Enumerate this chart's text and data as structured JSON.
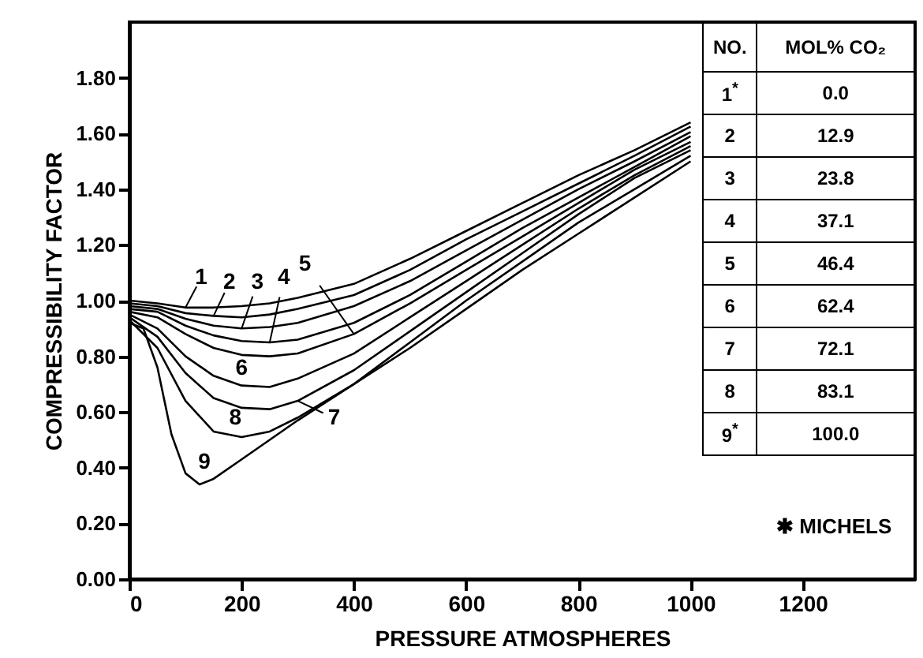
{
  "chart_data": {
    "type": "line",
    "xlabel": "PRESSURE  ATMOSPHERES",
    "ylabel": "COMPRESSIBILITY FACTOR",
    "xlim": [
      0,
      1400
    ],
    "ylim": [
      0,
      2.0
    ],
    "xticks": [
      0,
      200,
      400,
      600,
      800,
      1000,
      1200
    ],
    "yticks": [
      {
        "value": 0,
        "label": "0.00"
      },
      {
        "value": 0.2,
        "label": "0.20"
      },
      {
        "value": 0.4,
        "label": "0.40"
      },
      {
        "value": 0.6,
        "label": "0.60"
      },
      {
        "value": 0.8,
        "label": "0.80"
      },
      {
        "value": 1.0,
        "label": "1.00"
      },
      {
        "value": 1.2,
        "label": "1.20"
      },
      {
        "value": 1.4,
        "label": "1.40"
      },
      {
        "value": 1.6,
        "label": "1.60"
      },
      {
        "value": 1.8,
        "label": "1.80"
      }
    ],
    "x": [
      0,
      50,
      100,
      150,
      200,
      250,
      300,
      400,
      500,
      600,
      700,
      800,
      900,
      1000
    ],
    "series": [
      {
        "color": "#000000",
        "values": [
          1.0,
          0.99,
          0.975,
          0.975,
          0.98,
          0.99,
          1.01,
          1.06,
          1.15,
          1.25,
          1.35,
          1.45,
          1.54,
          1.64
        ]
      },
      {
        "color": "#000000",
        "values": [
          0.99,
          0.98,
          0.955,
          0.945,
          0.94,
          0.95,
          0.97,
          1.02,
          1.11,
          1.22,
          1.32,
          1.42,
          1.52,
          1.625
        ]
      },
      {
        "color": "#000000",
        "values": [
          0.98,
          0.97,
          0.935,
          0.91,
          0.9,
          0.905,
          0.92,
          0.98,
          1.07,
          1.18,
          1.29,
          1.4,
          1.5,
          1.605
        ]
      },
      {
        "color": "#000000",
        "values": [
          0.97,
          0.96,
          0.91,
          0.875,
          0.855,
          0.85,
          0.86,
          0.92,
          1.02,
          1.14,
          1.26,
          1.37,
          1.48,
          1.59
        ]
      },
      {
        "color": "#000000",
        "values": [
          0.96,
          0.94,
          0.88,
          0.83,
          0.805,
          0.8,
          0.81,
          0.88,
          0.99,
          1.11,
          1.23,
          1.35,
          1.47,
          1.57
        ]
      },
      {
        "color": "#000000",
        "values": [
          0.95,
          0.9,
          0.8,
          0.73,
          0.695,
          0.69,
          0.72,
          0.81,
          0.94,
          1.07,
          1.2,
          1.33,
          1.45,
          1.555
        ]
      },
      {
        "color": "#000000",
        "values": [
          0.94,
          0.87,
          0.74,
          0.65,
          0.615,
          0.61,
          0.64,
          0.75,
          0.89,
          1.03,
          1.17,
          1.31,
          1.44,
          1.54
        ]
      },
      {
        "color": "#000000",
        "values": [
          0.93,
          0.83,
          0.64,
          0.53,
          0.51,
          0.53,
          0.58,
          0.7,
          0.85,
          1.0,
          1.14,
          1.28,
          1.4,
          1.52
        ]
      },
      {
        "color": "#000000",
        "x": [
          0,
          25,
          50,
          75,
          100,
          125,
          150,
          200,
          300,
          400,
          500,
          600,
          700,
          800,
          900,
          1000
        ],
        "values": [
          0.92,
          0.9,
          0.76,
          0.52,
          0.38,
          0.34,
          0.36,
          0.43,
          0.57,
          0.7,
          0.83,
          0.97,
          1.11,
          1.24,
          1.37,
          1.5
        ]
      }
    ],
    "annotations": [
      {
        "text": "1",
        "x": 100,
        "y": 0.975
      },
      {
        "text": "2",
        "x": 150,
        "y": 0.945
      },
      {
        "text": "3",
        "x": 200,
        "y": 0.9
      },
      {
        "text": "4",
        "x": 250,
        "y": 0.85
      },
      {
        "text": "5",
        "x": 400,
        "y": 0.88
      },
      {
        "text": "6",
        "x": 200,
        "y": 0.695
      },
      {
        "text": "7",
        "x": 300,
        "y": 0.64
      },
      {
        "text": "8",
        "x": 200,
        "y": 0.51
      },
      {
        "text": "9",
        "x": 125,
        "y": 0.34
      },
      "NO.",
      "MOL% CO₂",
      "1$^{*}$",
      "0.0",
      "2",
      "12.9",
      "3",
      "23.8",
      "4",
      "37.1",
      "5",
      "46.4",
      "6",
      "62.4",
      "7",
      "72.1",
      "8",
      "83.1",
      "9$^{*}$",
      "100.0",
      "✱ MICHELS"
    ]
  }
}
